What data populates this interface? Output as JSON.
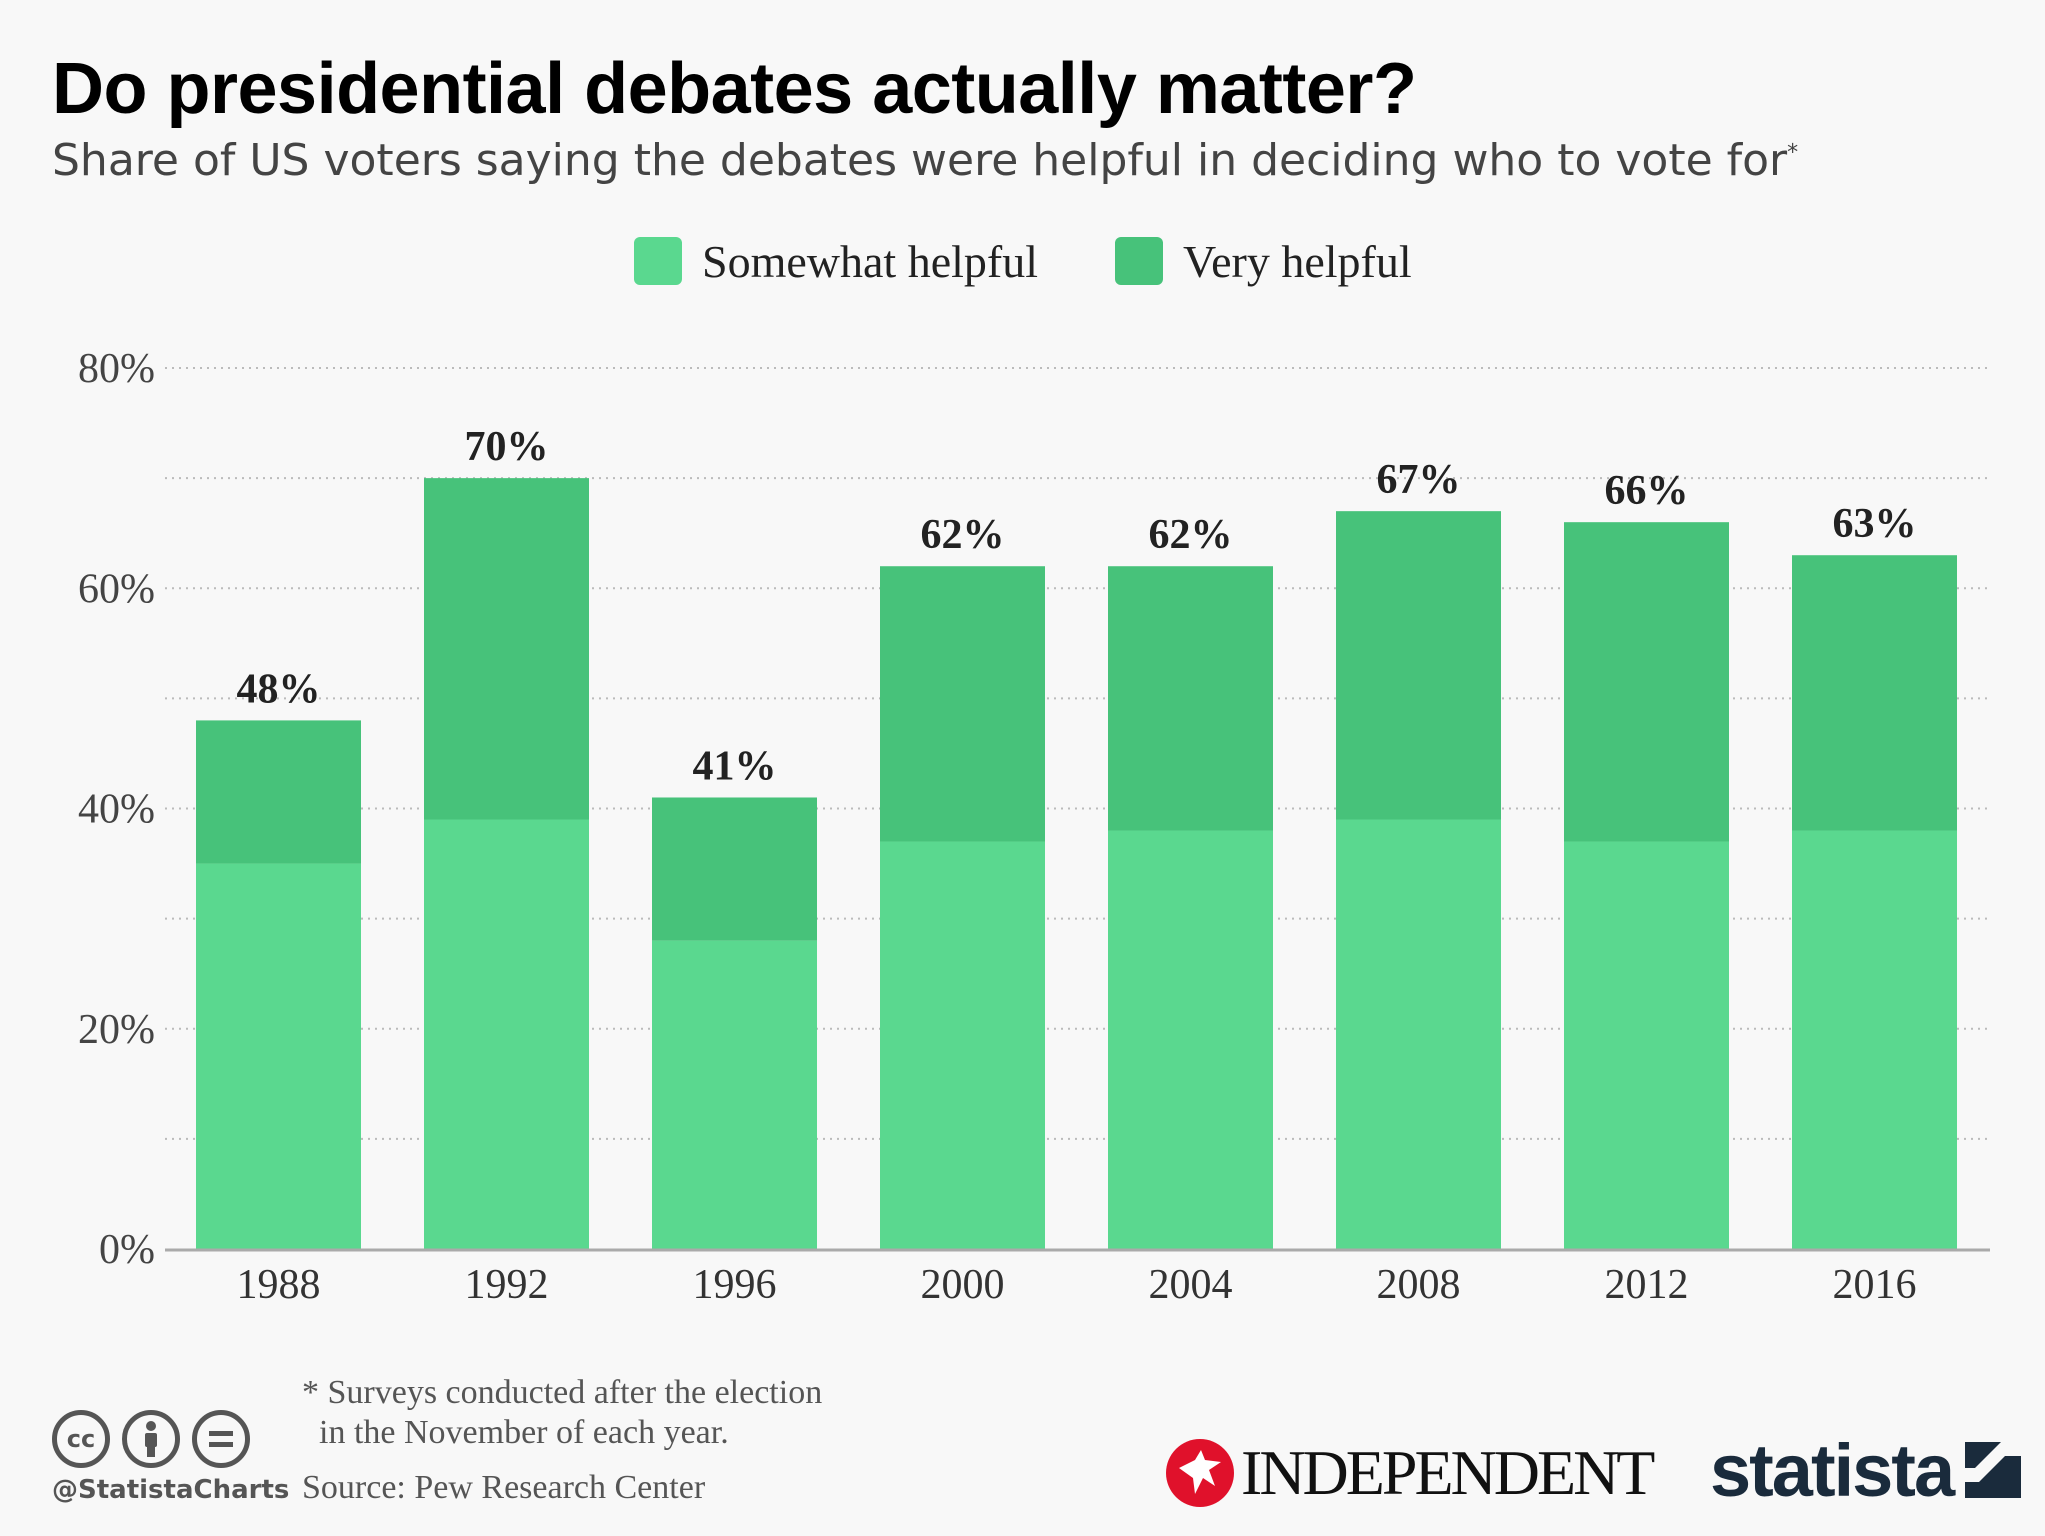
{
  "header": {
    "title": "Do presidential debates actually matter?",
    "subtitle": "Share of US voters saying the debates were helpful in deciding who to vote for",
    "subtitle_marker": "*"
  },
  "legend": {
    "somewhat": "Somewhat helpful",
    "very": "Very helpful"
  },
  "colors": {
    "somewhat": "#5ad88f",
    "very": "#47c27a",
    "background": "#f8f8f8",
    "grid": "#bbbbbb",
    "axis": "#aaaaaa"
  },
  "chart_data": {
    "type": "bar",
    "stacked": true,
    "categories": [
      "1988",
      "1992",
      "1996",
      "2000",
      "2004",
      "2008",
      "2012",
      "2016"
    ],
    "series": [
      {
        "name": "Somewhat helpful",
        "values": [
          35,
          39,
          28,
          37,
          38,
          39,
          37,
          38
        ]
      },
      {
        "name": "Very helpful",
        "values": [
          13,
          31,
          13,
          25,
          24,
          28,
          29,
          25
        ]
      }
    ],
    "totals": [
      48,
      70,
      41,
      62,
      62,
      67,
      66,
      63
    ],
    "total_labels": [
      "48%",
      "70%",
      "41%",
      "62%",
      "62%",
      "67%",
      "66%",
      "63%"
    ],
    "ylim": [
      0,
      80
    ],
    "yticks": [
      0,
      20,
      40,
      60,
      80
    ],
    "ytick_labels": [
      "0%",
      "20%",
      "40%",
      "60%",
      "80%"
    ],
    "grid": true,
    "legend_position": "top-center"
  },
  "footer": {
    "footnote": "* Surveys conducted after the election\n  in the November of each year.",
    "source": "Source: Pew Research Center",
    "handle": "@StatistaCharts",
    "cc_icons": [
      "cc-icon",
      "attribution-icon",
      "no-derivatives-icon"
    ],
    "independent_logo": "INDEPENDENT",
    "statista_logo": "statista"
  }
}
